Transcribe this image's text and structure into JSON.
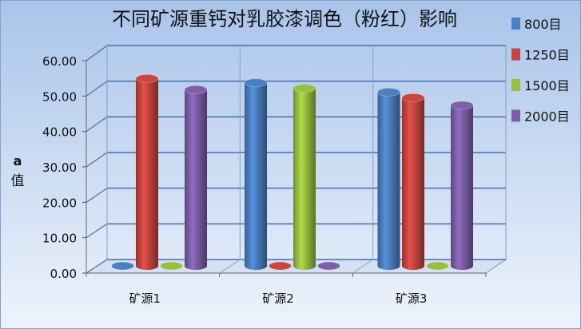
{
  "chart_data": {
    "type": "bar",
    "style": "3d-cylinder",
    "title": "不同矿源重钙对乳胶漆调色（粉红）影响",
    "xlabel": "",
    "ylabel_lines": [
      "a",
      "值"
    ],
    "categories": [
      "矿源1",
      "矿源2",
      "矿源3"
    ],
    "yticks": [
      "0.00",
      "10.00",
      "20.00",
      "30.00",
      "40.00",
      "50.00",
      "60.00"
    ],
    "ylim": [
      0,
      60
    ],
    "grid": true,
    "legend_position": "right",
    "series": [
      {
        "name": "800目",
        "color": "#4a7fc1",
        "values": [
          0,
          52.8,
          50.1
        ]
      },
      {
        "name": "1250目",
        "color": "#c9453f",
        "values": [
          54.0,
          0,
          48.5
        ]
      },
      {
        "name": "1500目",
        "color": "#98bf3e",
        "values": [
          0,
          51.2,
          0
        ]
      },
      {
        "name": "2000目",
        "color": "#7d5ea8",
        "values": [
          50.8,
          0,
          46.3
        ]
      }
    ]
  }
}
